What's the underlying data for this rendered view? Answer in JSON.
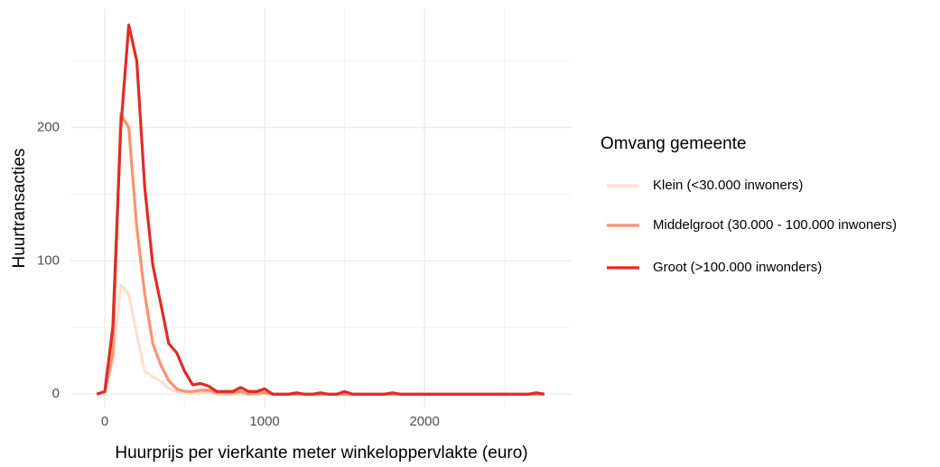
{
  "chart_data": {
    "type": "line",
    "x_label": "Huurprijs per vierkante meter winkeloppervlakte (euro)",
    "y_label": "Huurtransacties",
    "legend_title": "Omvang gemeente",
    "legend_position": "right",
    "grid": true,
    "x": [
      -50,
      0,
      50,
      100,
      150,
      200,
      250,
      300,
      350,
      400,
      450,
      500,
      550,
      600,
      650,
      700,
      750,
      800,
      850,
      900,
      950,
      1000,
      1050,
      1100,
      1150,
      1200,
      1250,
      1300,
      1350,
      1400,
      1450,
      1500,
      1550,
      1600,
      1650,
      1700,
      1750,
      1800,
      1850,
      1900,
      1950,
      2000,
      2050,
      2100,
      2150,
      2200,
      2250,
      2300,
      2350,
      2400,
      2450,
      2500,
      2550,
      2600,
      2650,
      2700,
      2750
    ],
    "series": [
      {
        "name": "Klein (<30.000 inwoners)",
        "color": "#fee0d2",
        "values": [
          0,
          1,
          25,
          82,
          75,
          45,
          17,
          13,
          10,
          4,
          2,
          1,
          1,
          1,
          1,
          0,
          0,
          0,
          0,
          0,
          0,
          0,
          0,
          0,
          0,
          0,
          0,
          0,
          0,
          0,
          0,
          0,
          0,
          0,
          0,
          0,
          0,
          0,
          0,
          0,
          0,
          0,
          0,
          0,
          0,
          0,
          0,
          0,
          0,
          0,
          0,
          0,
          0,
          0,
          0,
          0,
          0
        ]
      },
      {
        "name": "Middelgroot (30.000 - 100.000 inwoners)",
        "color": "#fc9272",
        "values": [
          0,
          2,
          30,
          210,
          200,
          125,
          75,
          38,
          22,
          10,
          4,
          2,
          2,
          3,
          3,
          1,
          1,
          1,
          2,
          0,
          1,
          1,
          0,
          0,
          0,
          0,
          0,
          0,
          0,
          0,
          0,
          0,
          0,
          0,
          0,
          0,
          0,
          0,
          0,
          0,
          0,
          0,
          0,
          0,
          0,
          0,
          0,
          0,
          0,
          0,
          0,
          0,
          0,
          0,
          0,
          0,
          0
        ]
      },
      {
        "name": "Groot (>100.000 inwonders)",
        "color": "#de2d26",
        "values": [
          0,
          2,
          50,
          200,
          277,
          250,
          155,
          97,
          68,
          38,
          31,
          17,
          7,
          8,
          6,
          2,
          2,
          2,
          5,
          2,
          2,
          4,
          0,
          0,
          0,
          1,
          0,
          0,
          1,
          0,
          0,
          2,
          0,
          0,
          0,
          0,
          0,
          1,
          0,
          0,
          0,
          0,
          0,
          0,
          0,
          0,
          0,
          0,
          0,
          0,
          0,
          0,
          0,
          0,
          0,
          1,
          0
        ]
      }
    ],
    "xlim": [
      -215,
      2920
    ],
    "ylim": [
      -10,
      289
    ],
    "xticks": [
      0,
      1000,
      2000
    ],
    "yticks": [
      0,
      100,
      200
    ],
    "x_minor_ticks": [
      500,
      1500,
      2500
    ],
    "y_minor_ticks": [
      50,
      150,
      250
    ]
  }
}
